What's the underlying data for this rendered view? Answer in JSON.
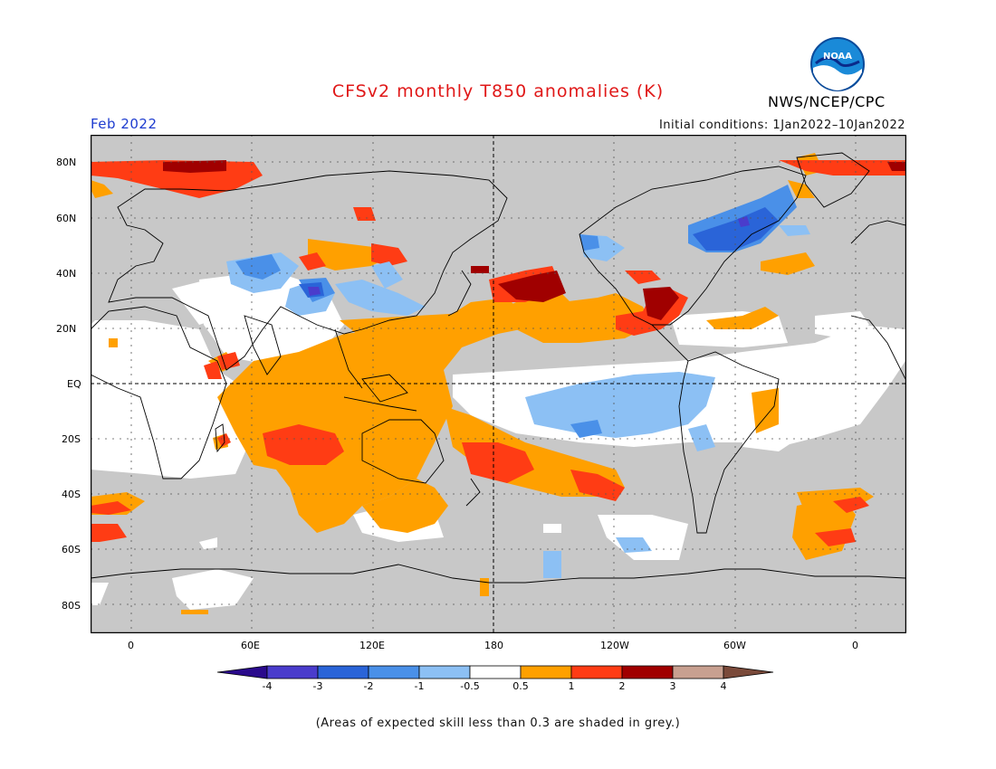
{
  "header": {
    "title": "CFSv2 monthly T850 anomalies (K)",
    "month": "Feb 2022",
    "initial_conditions": "Initial conditions: 1Jan2022–10Jan2022",
    "agency": "NWS/NCEP/CPC",
    "logo_text": "NOAA"
  },
  "map": {
    "projection": "cylindrical-equidistant",
    "center_longitude": 180,
    "background_no_skill_color": "#c8c8c8",
    "lat_labels": [
      "80N",
      "60N",
      "40N",
      "20N",
      "EQ",
      "20S",
      "40S",
      "60S",
      "80S"
    ],
    "lon_labels": [
      "0",
      "60E",
      "120E",
      "180",
      "120W",
      "60W",
      "0"
    ]
  },
  "legend": {
    "tick_labels": [
      "-4",
      "-3",
      "-2",
      "-1",
      "-0.5",
      "0.5",
      "1",
      "2",
      "3",
      "4"
    ],
    "colors": [
      "#2a0a8c",
      "#4a3ccc",
      "#2a64d8",
      "#4a90e8",
      "#8cc0f4",
      "#ffffff",
      "#ffa000",
      "#ff3c14",
      "#a00000",
      "#c8a090",
      "#7a4a3a"
    ]
  },
  "footnote": "(Areas of expected skill less than 0.3 are shaded in grey.)"
}
